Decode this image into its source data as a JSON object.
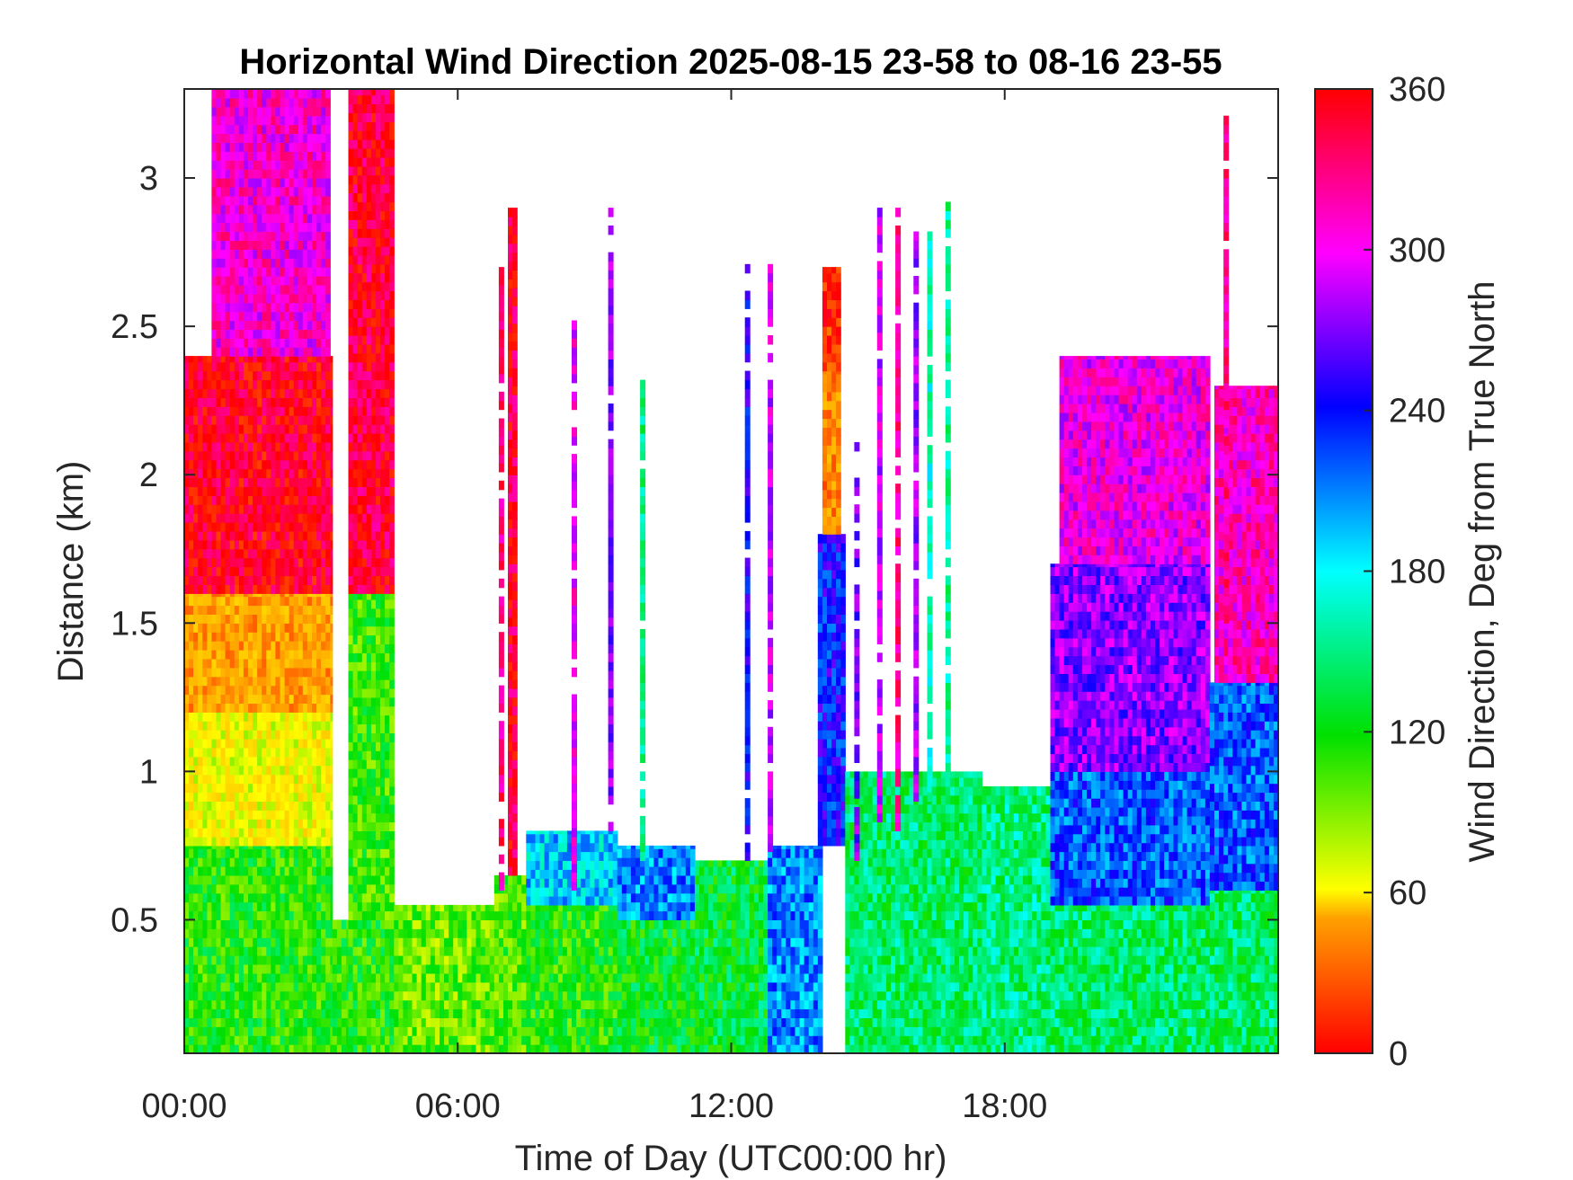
{
  "chart_data": {
    "type": "heatmap",
    "title": "Horizontal Wind Direction 2025-08-15 23-58 to 08-16 23-55",
    "xlabel": "Time of Day (UTC00:00 hr)",
    "ylabel": "Distance (km)",
    "colorbar_label": "Wind Direction, Deg from True North",
    "x_unit": "hours UTC",
    "xlim": [
      0,
      24
    ],
    "ylim": [
      0.05,
      3.3
    ],
    "clim": [
      0,
      360
    ],
    "x_ticks": [
      {
        "value": 0,
        "label": "00:00"
      },
      {
        "value": 6,
        "label": "06:00"
      },
      {
        "value": 12,
        "label": "12:00"
      },
      {
        "value": 18,
        "label": "18:00"
      }
    ],
    "y_ticks": [
      {
        "value": 0.5,
        "label": "0.5"
      },
      {
        "value": 1,
        "label": "1"
      },
      {
        "value": 1.5,
        "label": "1.5"
      },
      {
        "value": 2,
        "label": "2"
      },
      {
        "value": 2.5,
        "label": "2.5"
      },
      {
        "value": 3,
        "label": "3"
      }
    ],
    "colorbar_ticks": [
      {
        "value": 0,
        "label": "0"
      },
      {
        "value": 60,
        "label": "60"
      },
      {
        "value": 120,
        "label": "120"
      },
      {
        "value": 180,
        "label": "180"
      },
      {
        "value": 240,
        "label": "240"
      },
      {
        "value": 300,
        "label": "300"
      },
      {
        "value": 360,
        "label": "360"
      }
    ],
    "colormap": [
      "#ff0000",
      "#ffa000",
      "#ffff00",
      "#00e000",
      "#00ffff",
      "#0000ff",
      "#ff00ff",
      "#ff0000"
    ],
    "regions": [
      {
        "t": [
          0.0,
          3.25
        ],
        "z": [
          0.05,
          0.75
        ],
        "dir": 150
      },
      {
        "t": [
          0.0,
          3.25
        ],
        "z": [
          0.75,
          1.2
        ],
        "dir": 100
      },
      {
        "t": [
          0.0,
          3.25
        ],
        "z": [
          1.2,
          1.6
        ],
        "dir": 55
      },
      {
        "t": [
          0.0,
          3.25
        ],
        "z": [
          1.6,
          2.4
        ],
        "dir": 355
      },
      {
        "t": [
          0.6,
          3.2
        ],
        "z": [
          2.4,
          3.3
        ],
        "dir": 315
      },
      {
        "t": [
          3.25,
          3.6
        ],
        "z": [
          0.05,
          0.5
        ],
        "dir": 150
      },
      {
        "t": [
          3.6,
          4.6
        ],
        "z": [
          0.05,
          0.5
        ],
        "dir": 150
      },
      {
        "t": [
          3.6,
          4.6
        ],
        "z": [
          0.5,
          1.6
        ],
        "dir": 145
      },
      {
        "t": [
          3.6,
          4.6
        ],
        "z": [
          1.6,
          3.3
        ],
        "dir": 350
      },
      {
        "t": [
          4.6,
          6.8
        ],
        "z": [
          0.05,
          0.55
        ],
        "dir": 135
      },
      {
        "t": [
          6.8,
          7.5
        ],
        "z": [
          0.05,
          0.65
        ],
        "dir": 140
      },
      {
        "t": [
          7.1,
          7.3
        ],
        "z": [
          0.65,
          2.9
        ],
        "dir": 350
      },
      {
        "t": [
          7.5,
          9.5
        ],
        "z": [
          0.05,
          0.55
        ],
        "dir": 150
      },
      {
        "t": [
          7.5,
          9.5
        ],
        "z": [
          0.55,
          0.8
        ],
        "dir": 215
      },
      {
        "t": [
          9.5,
          11.2
        ],
        "z": [
          0.05,
          0.5
        ],
        "dir": 160
      },
      {
        "t": [
          9.5,
          11.2
        ],
        "z": [
          0.5,
          0.75
        ],
        "dir": 230
      },
      {
        "t": [
          11.2,
          12.8
        ],
        "z": [
          0.05,
          0.7
        ],
        "dir": 165
      },
      {
        "t": [
          12.8,
          14.0
        ],
        "z": [
          0.05,
          0.75
        ],
        "dir": 230
      },
      {
        "t": [
          13.9,
          14.5
        ],
        "z": [
          0.75,
          1.8
        ],
        "dir": 255
      },
      {
        "t": [
          14.0,
          14.4
        ],
        "z": [
          1.8,
          2.35
        ],
        "dir": 45
      },
      {
        "t": [
          14.0,
          14.4
        ],
        "z": [
          2.35,
          2.7
        ],
        "dir": 15
      },
      {
        "t": [
          14.5,
          17.5
        ],
        "z": [
          0.05,
          1.0
        ],
        "dir": 175
      },
      {
        "t": [
          17.5,
          19.0
        ],
        "z": [
          0.05,
          0.95
        ],
        "dir": 180
      },
      {
        "t": [
          19.0,
          22.5
        ],
        "z": [
          0.05,
          0.55
        ],
        "dir": 175
      },
      {
        "t": [
          19.0,
          22.5
        ],
        "z": [
          0.55,
          1.0
        ],
        "dir": 240
      },
      {
        "t": [
          19.0,
          22.5
        ],
        "z": [
          1.0,
          1.7
        ],
        "dir": 285
      },
      {
        "t": [
          19.2,
          22.5
        ],
        "z": [
          1.7,
          2.4
        ],
        "dir": 310
      },
      {
        "t": [
          22.5,
          24.0
        ],
        "z": [
          0.05,
          0.6
        ],
        "dir": 175
      },
      {
        "t": [
          22.5,
          24.0
        ],
        "z": [
          0.6,
          1.3
        ],
        "dir": 240
      },
      {
        "t": [
          22.6,
          24.0
        ],
        "z": [
          1.3,
          2.3
        ],
        "dir": 320
      }
    ],
    "spikes": [
      {
        "t": 6.9,
        "z": [
          0.6,
          2.7
        ],
        "dir": 335
      },
      {
        "t": 8.5,
        "z": [
          0.6,
          2.5
        ],
        "dir": 310
      },
      {
        "t": 9.3,
        "z": [
          0.8,
          2.9
        ],
        "dir": 285
      },
      {
        "t": 10.0,
        "z": [
          0.7,
          2.3
        ],
        "dir": 180
      },
      {
        "t": 12.3,
        "z": [
          0.7,
          2.7
        ],
        "dir": 260
      },
      {
        "t": 12.8,
        "z": [
          0.7,
          2.7
        ],
        "dir": 300
      },
      {
        "t": 14.7,
        "z": [
          0.7,
          2.1
        ],
        "dir": 280
      },
      {
        "t": 15.2,
        "z": [
          0.8,
          2.9
        ],
        "dir": 300
      },
      {
        "t": 15.6,
        "z": [
          0.8,
          2.9
        ],
        "dir": 330
      },
      {
        "t": 16.0,
        "z": [
          0.9,
          2.8
        ],
        "dir": 290
      },
      {
        "t": 16.3,
        "z": [
          0.9,
          2.8
        ],
        "dir": 195
      },
      {
        "t": 16.7,
        "z": [
          1.0,
          2.9
        ],
        "dir": 185
      },
      {
        "t": 22.8,
        "z": [
          1.5,
          3.2
        ],
        "dir": 330
      }
    ]
  }
}
